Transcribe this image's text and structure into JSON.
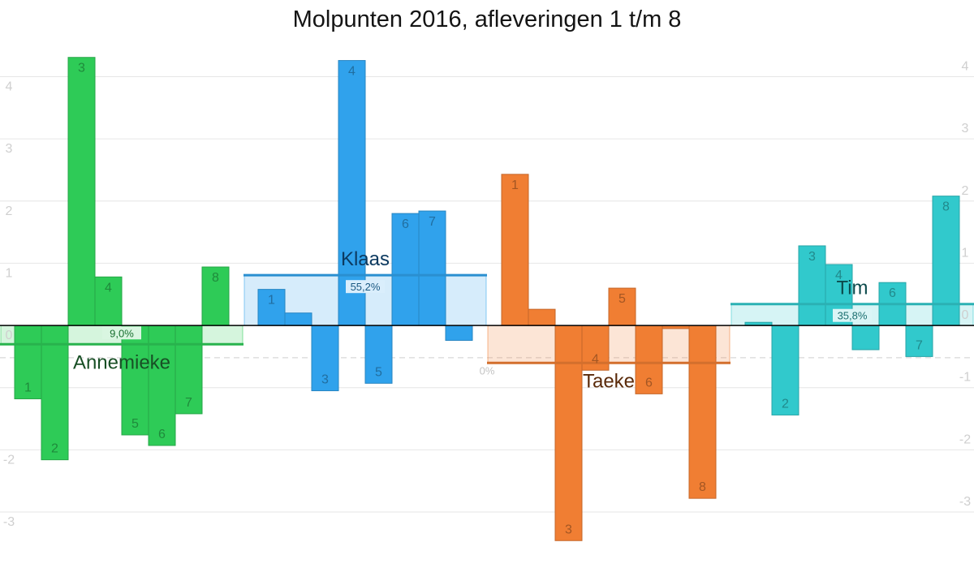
{
  "chart_data": {
    "type": "bar",
    "title": "Molpunten 2016, afleveringen 1 t/m 8",
    "categories": [
      "1",
      "2",
      "3",
      "4",
      "5",
      "6",
      "7",
      "8"
    ],
    "series": [
      {
        "name": "Annemieke",
        "percentage": "9,0%",
        "color": "#2ecb57",
        "label_color": "#184f25",
        "values": [
          -1.18,
          -2.16,
          4.31,
          0.78,
          -1.76,
          -1.93,
          -1.42,
          0.94
        ]
      },
      {
        "name": "Klaas",
        "percentage": "55,2%",
        "color": "#30a2ec",
        "label_color": "#0c3a60",
        "values": [
          0.58,
          0.2,
          -1.05,
          4.26,
          -0.93,
          1.8,
          1.84,
          -0.24
        ]
      },
      {
        "name": "Taeke",
        "percentage": "0%",
        "color": "#f07e33",
        "label_color": "#5a2a0a",
        "values": [
          2.43,
          0.26,
          -3.46,
          -0.72,
          0.6,
          -1.1,
          -0.05,
          -2.78
        ]
      },
      {
        "name": "Tim",
        "percentage": "35,8%",
        "color": "#31c9cc",
        "label_color": "#0c4a4c",
        "values": [
          0.05,
          -1.44,
          1.28,
          0.98,
          -0.39,
          0.69,
          -0.5,
          2.08
        ]
      }
    ],
    "ylim": [
      -3.9,
      4.45
    ],
    "yticks_left": [
      "4",
      "3",
      "2",
      "1",
      "0",
      "-2",
      "-3"
    ],
    "yticks_right": [
      "4",
      "3",
      "2",
      "1",
      "0",
      "-1",
      "-2",
      "-3"
    ],
    "reference_line": -0.52,
    "grid": true
  }
}
